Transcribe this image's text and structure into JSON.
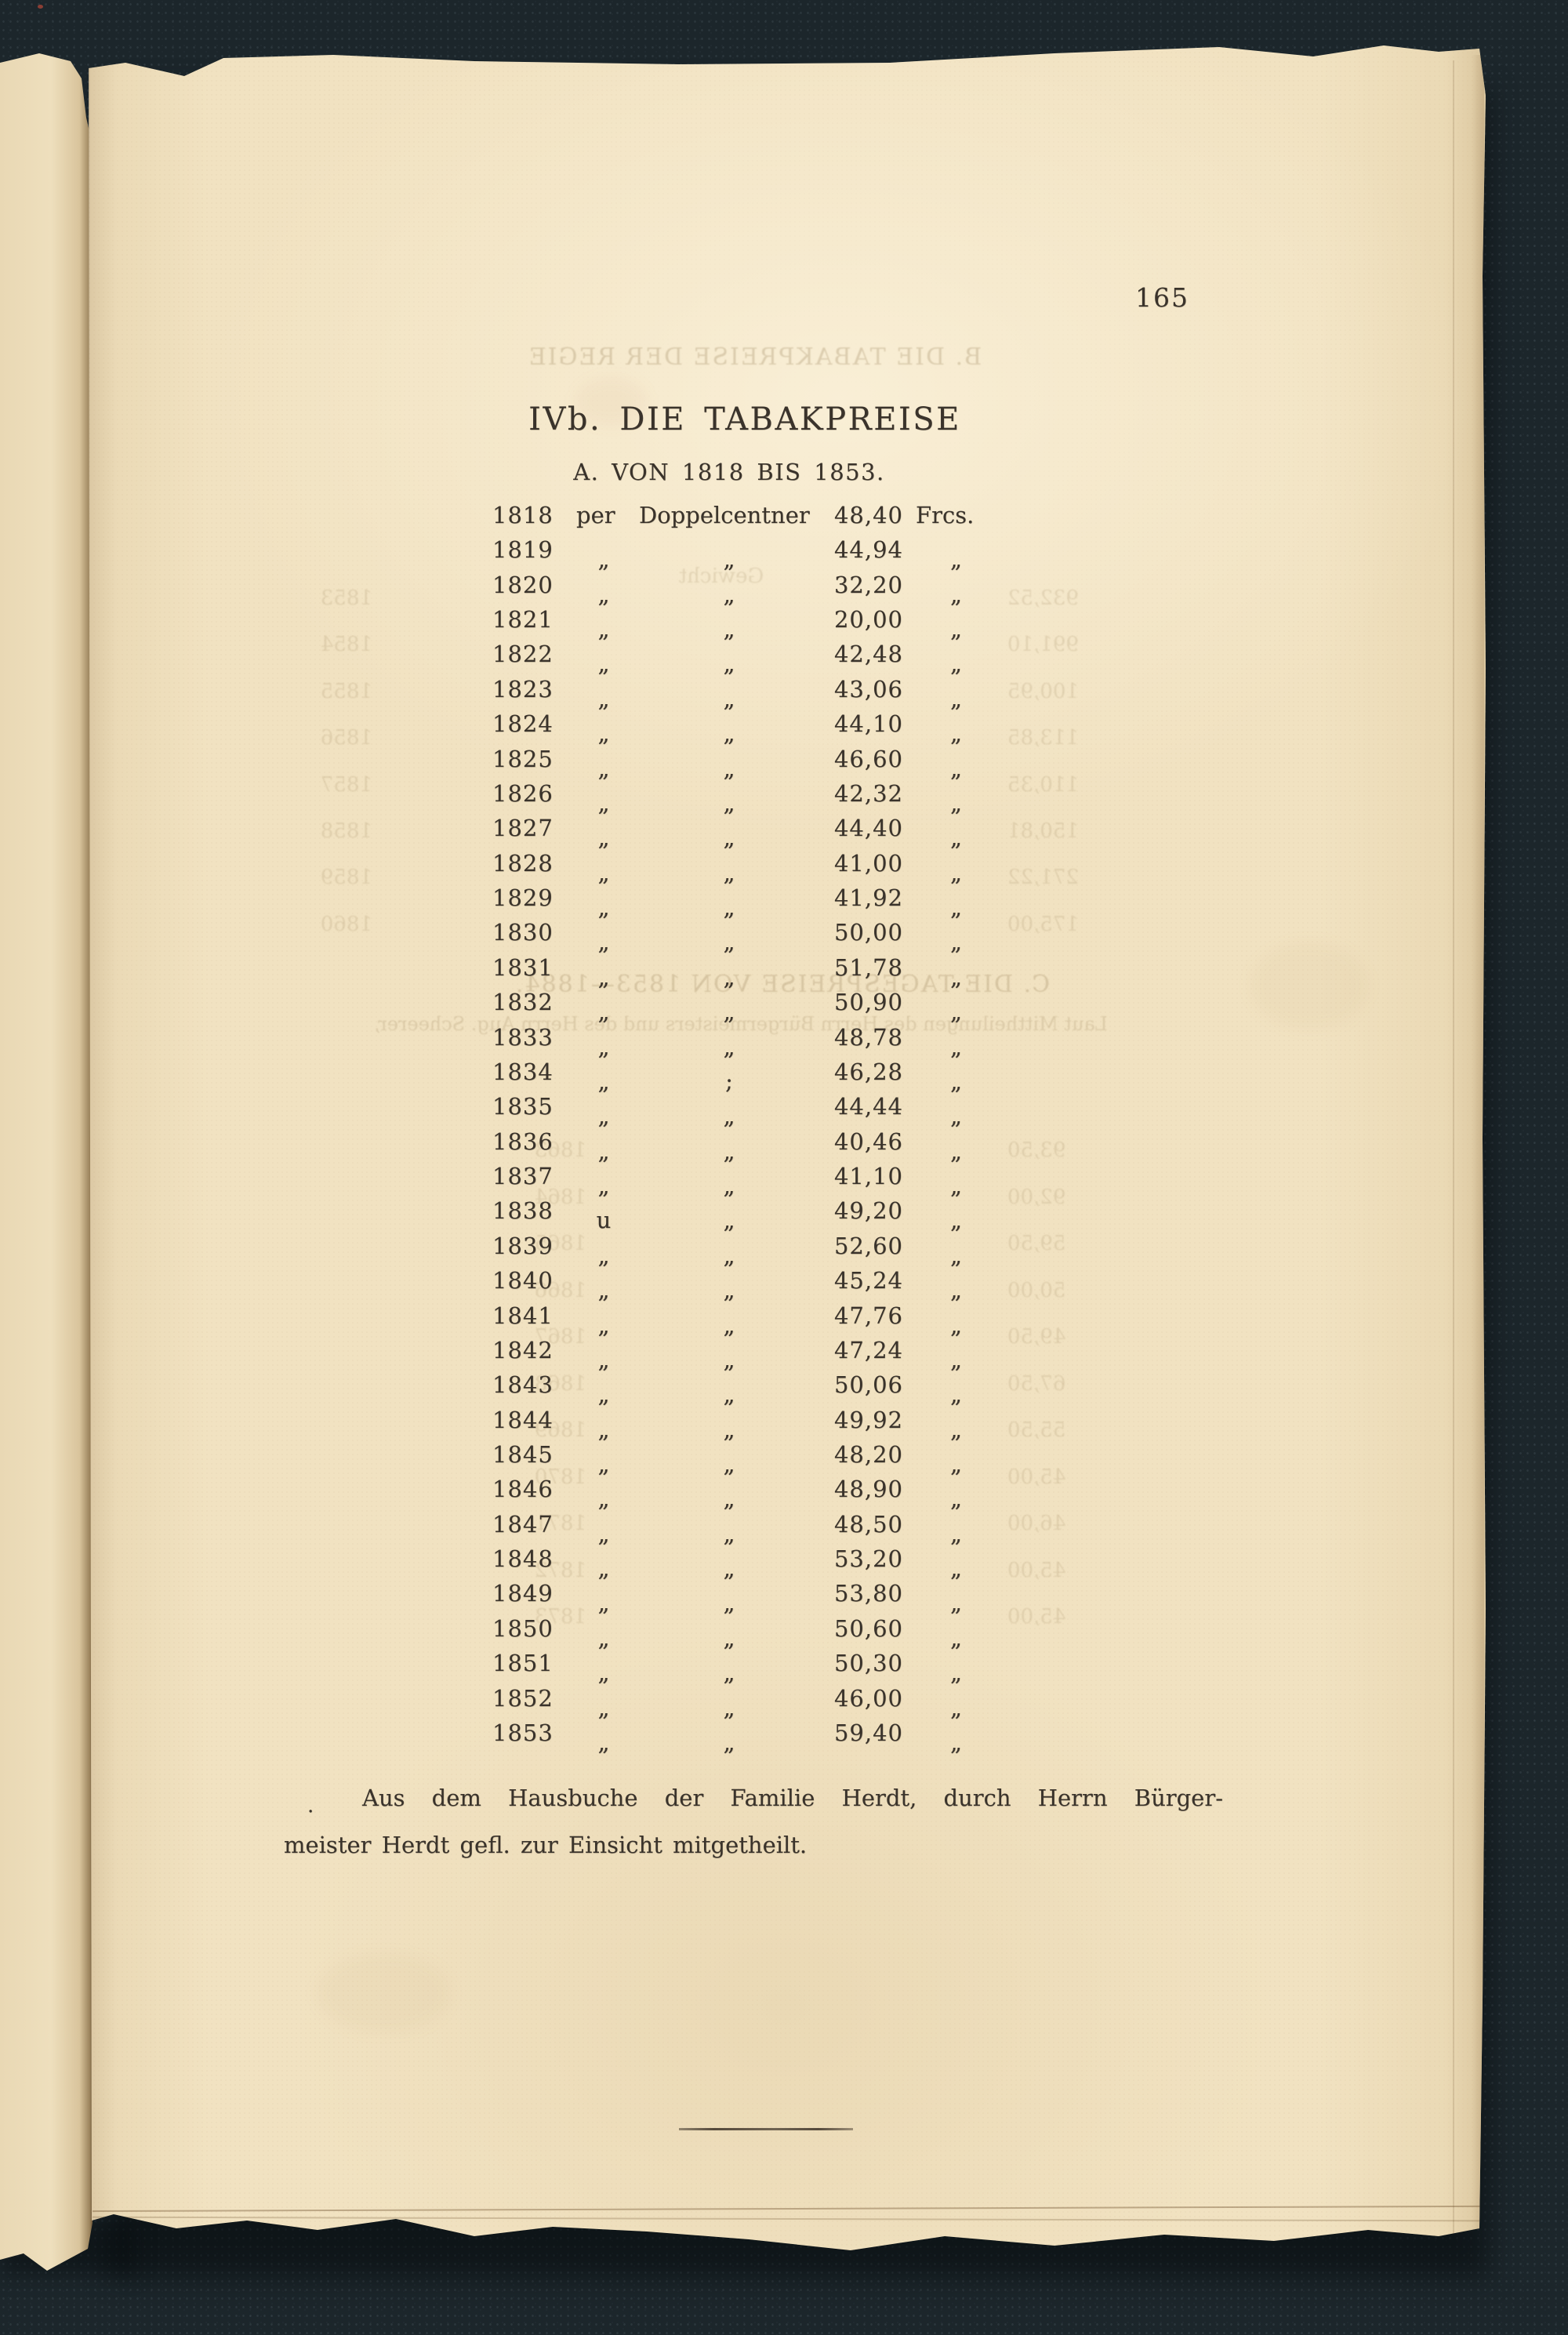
{
  "document": {
    "page_number": "165",
    "title": "IVb. DIE TABAKPREISE",
    "subtitle": "A. VON 1818 BIS 1853.",
    "footnote_marker": ".",
    "footnote_line1": "Aus dem Hausbuche der Familie Herdt, durch Herrn Bürger-",
    "footnote_line2": "meister Herdt gefl. zur Einsicht mitgetheilt."
  },
  "table": {
    "unit_header": "per Doppelcentner",
    "currency": "Frcs.",
    "ditto_mark": "„",
    "rows": [
      {
        "year": "1818",
        "d1": "per",
        "d2": "Doppelcentner",
        "value": "48,40",
        "unit": "Frcs."
      },
      {
        "year": "1819",
        "d1": "„",
        "d2": "„",
        "value": "44,94",
        "unit": "„"
      },
      {
        "year": "1820",
        "d1": "„",
        "d2": "„",
        "value": "32,20",
        "unit": "„"
      },
      {
        "year": "1821",
        "d1": "„",
        "d2": "„",
        "value": "20,00",
        "unit": "„"
      },
      {
        "year": "1822",
        "d1": "„",
        "d2": "„",
        "value": "42,48",
        "unit": "„"
      },
      {
        "year": "1823",
        "d1": "„",
        "d2": "„",
        "value": "43,06",
        "unit": "„"
      },
      {
        "year": "1824",
        "d1": "„",
        "d2": "„",
        "value": "44,10",
        "unit": "„"
      },
      {
        "year": "1825",
        "d1": "„",
        "d2": "„",
        "value": "46,60",
        "unit": "„"
      },
      {
        "year": "1826",
        "d1": "„",
        "d2": "„",
        "value": "42,32",
        "unit": "„"
      },
      {
        "year": "1827",
        "d1": "„",
        "d2": "„",
        "value": "44,40",
        "unit": "„"
      },
      {
        "year": "1828",
        "d1": "„",
        "d2": "„",
        "value": "41,00",
        "unit": "„"
      },
      {
        "year": "1829",
        "d1": "„",
        "d2": "„",
        "value": "41,92",
        "unit": "„"
      },
      {
        "year": "1830",
        "d1": "„",
        "d2": "„",
        "value": "50,00",
        "unit": "„"
      },
      {
        "year": "1831",
        "d1": "„",
        "d2": "„",
        "value": "51,78",
        "unit": "„"
      },
      {
        "year": "1832",
        "d1": "„",
        "d2": "„",
        "value": "50,90",
        "unit": "„"
      },
      {
        "year": "1833",
        "d1": "„",
        "d2": "„",
        "value": "48,78",
        "unit": "„"
      },
      {
        "year": "1834",
        "d1": "„",
        "d2": ";",
        "value": "46,28",
        "unit": "„"
      },
      {
        "year": "1835",
        "d1": "„",
        "d2": "„",
        "value": "44,44",
        "unit": "„"
      },
      {
        "year": "1836",
        "d1": "„",
        "d2": "„",
        "value": "40,46",
        "unit": "„"
      },
      {
        "year": "1837",
        "d1": "„",
        "d2": "„",
        "value": "41,10",
        "unit": "„"
      },
      {
        "year": "1838",
        "d1": "u",
        "d2": "„",
        "value": "49,20",
        "unit": "„"
      },
      {
        "year": "1839",
        "d1": "„",
        "d2": "„",
        "value": "52,60",
        "unit": "„"
      },
      {
        "year": "1840",
        "d1": "„",
        "d2": "„",
        "value": "45,24",
        "unit": "„"
      },
      {
        "year": "1841",
        "d1": "„",
        "d2": "„",
        "value": "47,76",
        "unit": "„"
      },
      {
        "year": "1842",
        "d1": "„",
        "d2": "„",
        "value": "47,24",
        "unit": "„"
      },
      {
        "year": "1843",
        "d1": "„",
        "d2": "„",
        "value": "50,06",
        "unit": "„"
      },
      {
        "year": "1844",
        "d1": "„",
        "d2": "„",
        "value": "49,92",
        "unit": "„"
      },
      {
        "year": "1845",
        "d1": "„",
        "d2": "„",
        "value": "48,20",
        "unit": "„"
      },
      {
        "year": "1846",
        "d1": "„",
        "d2": "„",
        "value": "48,90",
        "unit": "„"
      },
      {
        "year": "1847",
        "d1": "„",
        "d2": "„",
        "value": "48,50",
        "unit": "„"
      },
      {
        "year": "1848",
        "d1": "„",
        "d2": "„",
        "value": "53,20",
        "unit": "„"
      },
      {
        "year": "1849",
        "d1": "„",
        "d2": "„",
        "value": "53,80",
        "unit": "„"
      },
      {
        "year": "1850",
        "d1": "„",
        "d2": "„",
        "value": "50,60",
        "unit": "„"
      },
      {
        "year": "1851",
        "d1": "„",
        "d2": "„",
        "value": "50,30",
        "unit": "„"
      },
      {
        "year": "1852",
        "d1": "„",
        "d2": "„",
        "value": "46,00",
        "unit": "„"
      },
      {
        "year": "1853",
        "d1": "„",
        "d2": "„",
        "value": "59,40",
        "unit": "„"
      }
    ]
  },
  "ghost_bleedthrough": {
    "note": "faint mirrored show-through of the reverse page, mostly illegible",
    "header_b": "B. DIE TABAKPREISE DER REGIE",
    "gewicht_label": "Gewicht",
    "section_c_title": "C. DIE TAGESPREISE VON 1853—1884.",
    "section_c_sub": "Laut Mittheilungen des Herrn Bürgermeisters und des Herrn Aug. Scheerer,",
    "years_a": [
      "1853",
      "1854",
      "1855",
      "1856",
      "1857",
      "1858",
      "1859",
      "1860"
    ],
    "values_a": [
      "932,52",
      "991,10",
      "100,95",
      "113,85",
      "110,35",
      "150,81",
      "271,22",
      "175,00"
    ],
    "years_b": [
      "1863",
      "1864",
      "1865",
      "1866",
      "1867",
      "1868",
      "1869",
      "1870",
      "1871",
      "1872",
      "1873"
    ],
    "values_b": [
      "93,50",
      "92,00",
      "59,50",
      "50,00",
      "49,50",
      "67,50",
      "55,50",
      "45,00",
      "46,00",
      "45,00",
      "45,00"
    ]
  },
  "colors": {
    "background": "#1c262b",
    "paper": "#f1e2c1",
    "ink": "#3a332b",
    "ghost_ink": "#9b845c"
  }
}
